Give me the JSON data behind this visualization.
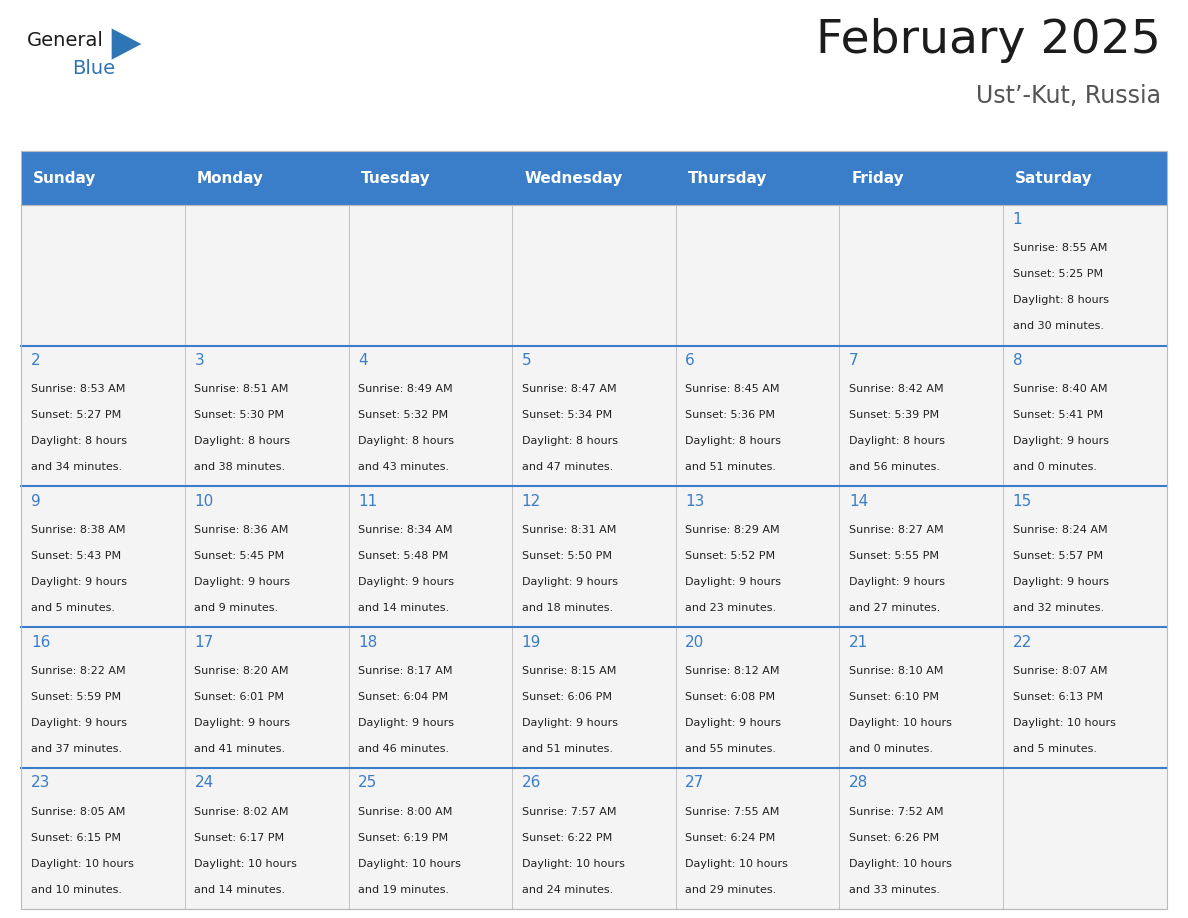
{
  "title": "February 2025",
  "subtitle": "Ust’-Kut, Russia",
  "days_of_week": [
    "Sunday",
    "Monday",
    "Tuesday",
    "Wednesday",
    "Thursday",
    "Friday",
    "Saturday"
  ],
  "header_bg": "#3A7DC9",
  "header_text": "#FFFFFF",
  "cell_bg": "#F4F4F4",
  "text_color": "#222222",
  "day_number_color": "#3A7DC9",
  "row_separator_color": "#3A7DC9",
  "cell_separator_color": "#BBBBBB",
  "calendar_data": [
    [
      null,
      null,
      null,
      null,
      null,
      null,
      1
    ],
    [
      2,
      3,
      4,
      5,
      6,
      7,
      8
    ],
    [
      9,
      10,
      11,
      12,
      13,
      14,
      15
    ],
    [
      16,
      17,
      18,
      19,
      20,
      21,
      22
    ],
    [
      23,
      24,
      25,
      26,
      27,
      28,
      null
    ]
  ],
  "sun_data": {
    "1": {
      "rise": "8:55 AM",
      "set": "5:25 PM",
      "day1": "Daylight: 8 hours",
      "day2": "and 30 minutes."
    },
    "2": {
      "rise": "8:53 AM",
      "set": "5:27 PM",
      "day1": "Daylight: 8 hours",
      "day2": "and 34 minutes."
    },
    "3": {
      "rise": "8:51 AM",
      "set": "5:30 PM",
      "day1": "Daylight: 8 hours",
      "day2": "and 38 minutes."
    },
    "4": {
      "rise": "8:49 AM",
      "set": "5:32 PM",
      "day1": "Daylight: 8 hours",
      "day2": "and 43 minutes."
    },
    "5": {
      "rise": "8:47 AM",
      "set": "5:34 PM",
      "day1": "Daylight: 8 hours",
      "day2": "and 47 minutes."
    },
    "6": {
      "rise": "8:45 AM",
      "set": "5:36 PM",
      "day1": "Daylight: 8 hours",
      "day2": "and 51 minutes."
    },
    "7": {
      "rise": "8:42 AM",
      "set": "5:39 PM",
      "day1": "Daylight: 8 hours",
      "day2": "and 56 minutes."
    },
    "8": {
      "rise": "8:40 AM",
      "set": "5:41 PM",
      "day1": "Daylight: 9 hours",
      "day2": "and 0 minutes."
    },
    "9": {
      "rise": "8:38 AM",
      "set": "5:43 PM",
      "day1": "Daylight: 9 hours",
      "day2": "and 5 minutes."
    },
    "10": {
      "rise": "8:36 AM",
      "set": "5:45 PM",
      "day1": "Daylight: 9 hours",
      "day2": "and 9 minutes."
    },
    "11": {
      "rise": "8:34 AM",
      "set": "5:48 PM",
      "day1": "Daylight: 9 hours",
      "day2": "and 14 minutes."
    },
    "12": {
      "rise": "8:31 AM",
      "set": "5:50 PM",
      "day1": "Daylight: 9 hours",
      "day2": "and 18 minutes."
    },
    "13": {
      "rise": "8:29 AM",
      "set": "5:52 PM",
      "day1": "Daylight: 9 hours",
      "day2": "and 23 minutes."
    },
    "14": {
      "rise": "8:27 AM",
      "set": "5:55 PM",
      "day1": "Daylight: 9 hours",
      "day2": "and 27 minutes."
    },
    "15": {
      "rise": "8:24 AM",
      "set": "5:57 PM",
      "day1": "Daylight: 9 hours",
      "day2": "and 32 minutes."
    },
    "16": {
      "rise": "8:22 AM",
      "set": "5:59 PM",
      "day1": "Daylight: 9 hours",
      "day2": "and 37 minutes."
    },
    "17": {
      "rise": "8:20 AM",
      "set": "6:01 PM",
      "day1": "Daylight: 9 hours",
      "day2": "and 41 minutes."
    },
    "18": {
      "rise": "8:17 AM",
      "set": "6:04 PM",
      "day1": "Daylight: 9 hours",
      "day2": "and 46 minutes."
    },
    "19": {
      "rise": "8:15 AM",
      "set": "6:06 PM",
      "day1": "Daylight: 9 hours",
      "day2": "and 51 minutes."
    },
    "20": {
      "rise": "8:12 AM",
      "set": "6:08 PM",
      "day1": "Daylight: 9 hours",
      "day2": "and 55 minutes."
    },
    "21": {
      "rise": "8:10 AM",
      "set": "6:10 PM",
      "day1": "Daylight: 10 hours",
      "day2": "and 0 minutes."
    },
    "22": {
      "rise": "8:07 AM",
      "set": "6:13 PM",
      "day1": "Daylight: 10 hours",
      "day2": "and 5 minutes."
    },
    "23": {
      "rise": "8:05 AM",
      "set": "6:15 PM",
      "day1": "Daylight: 10 hours",
      "day2": "and 10 minutes."
    },
    "24": {
      "rise": "8:02 AM",
      "set": "6:17 PM",
      "day1": "Daylight: 10 hours",
      "day2": "and 14 minutes."
    },
    "25": {
      "rise": "8:00 AM",
      "set": "6:19 PM",
      "day1": "Daylight: 10 hours",
      "day2": "and 19 minutes."
    },
    "26": {
      "rise": "7:57 AM",
      "set": "6:22 PM",
      "day1": "Daylight: 10 hours",
      "day2": "and 24 minutes."
    },
    "27": {
      "rise": "7:55 AM",
      "set": "6:24 PM",
      "day1": "Daylight: 10 hours",
      "day2": "and 29 minutes."
    },
    "28": {
      "rise": "7:52 AM",
      "set": "6:26 PM",
      "day1": "Daylight: 10 hours",
      "day2": "and 33 minutes."
    }
  },
  "fig_width": 11.88,
  "fig_height": 9.18,
  "dpi": 100
}
